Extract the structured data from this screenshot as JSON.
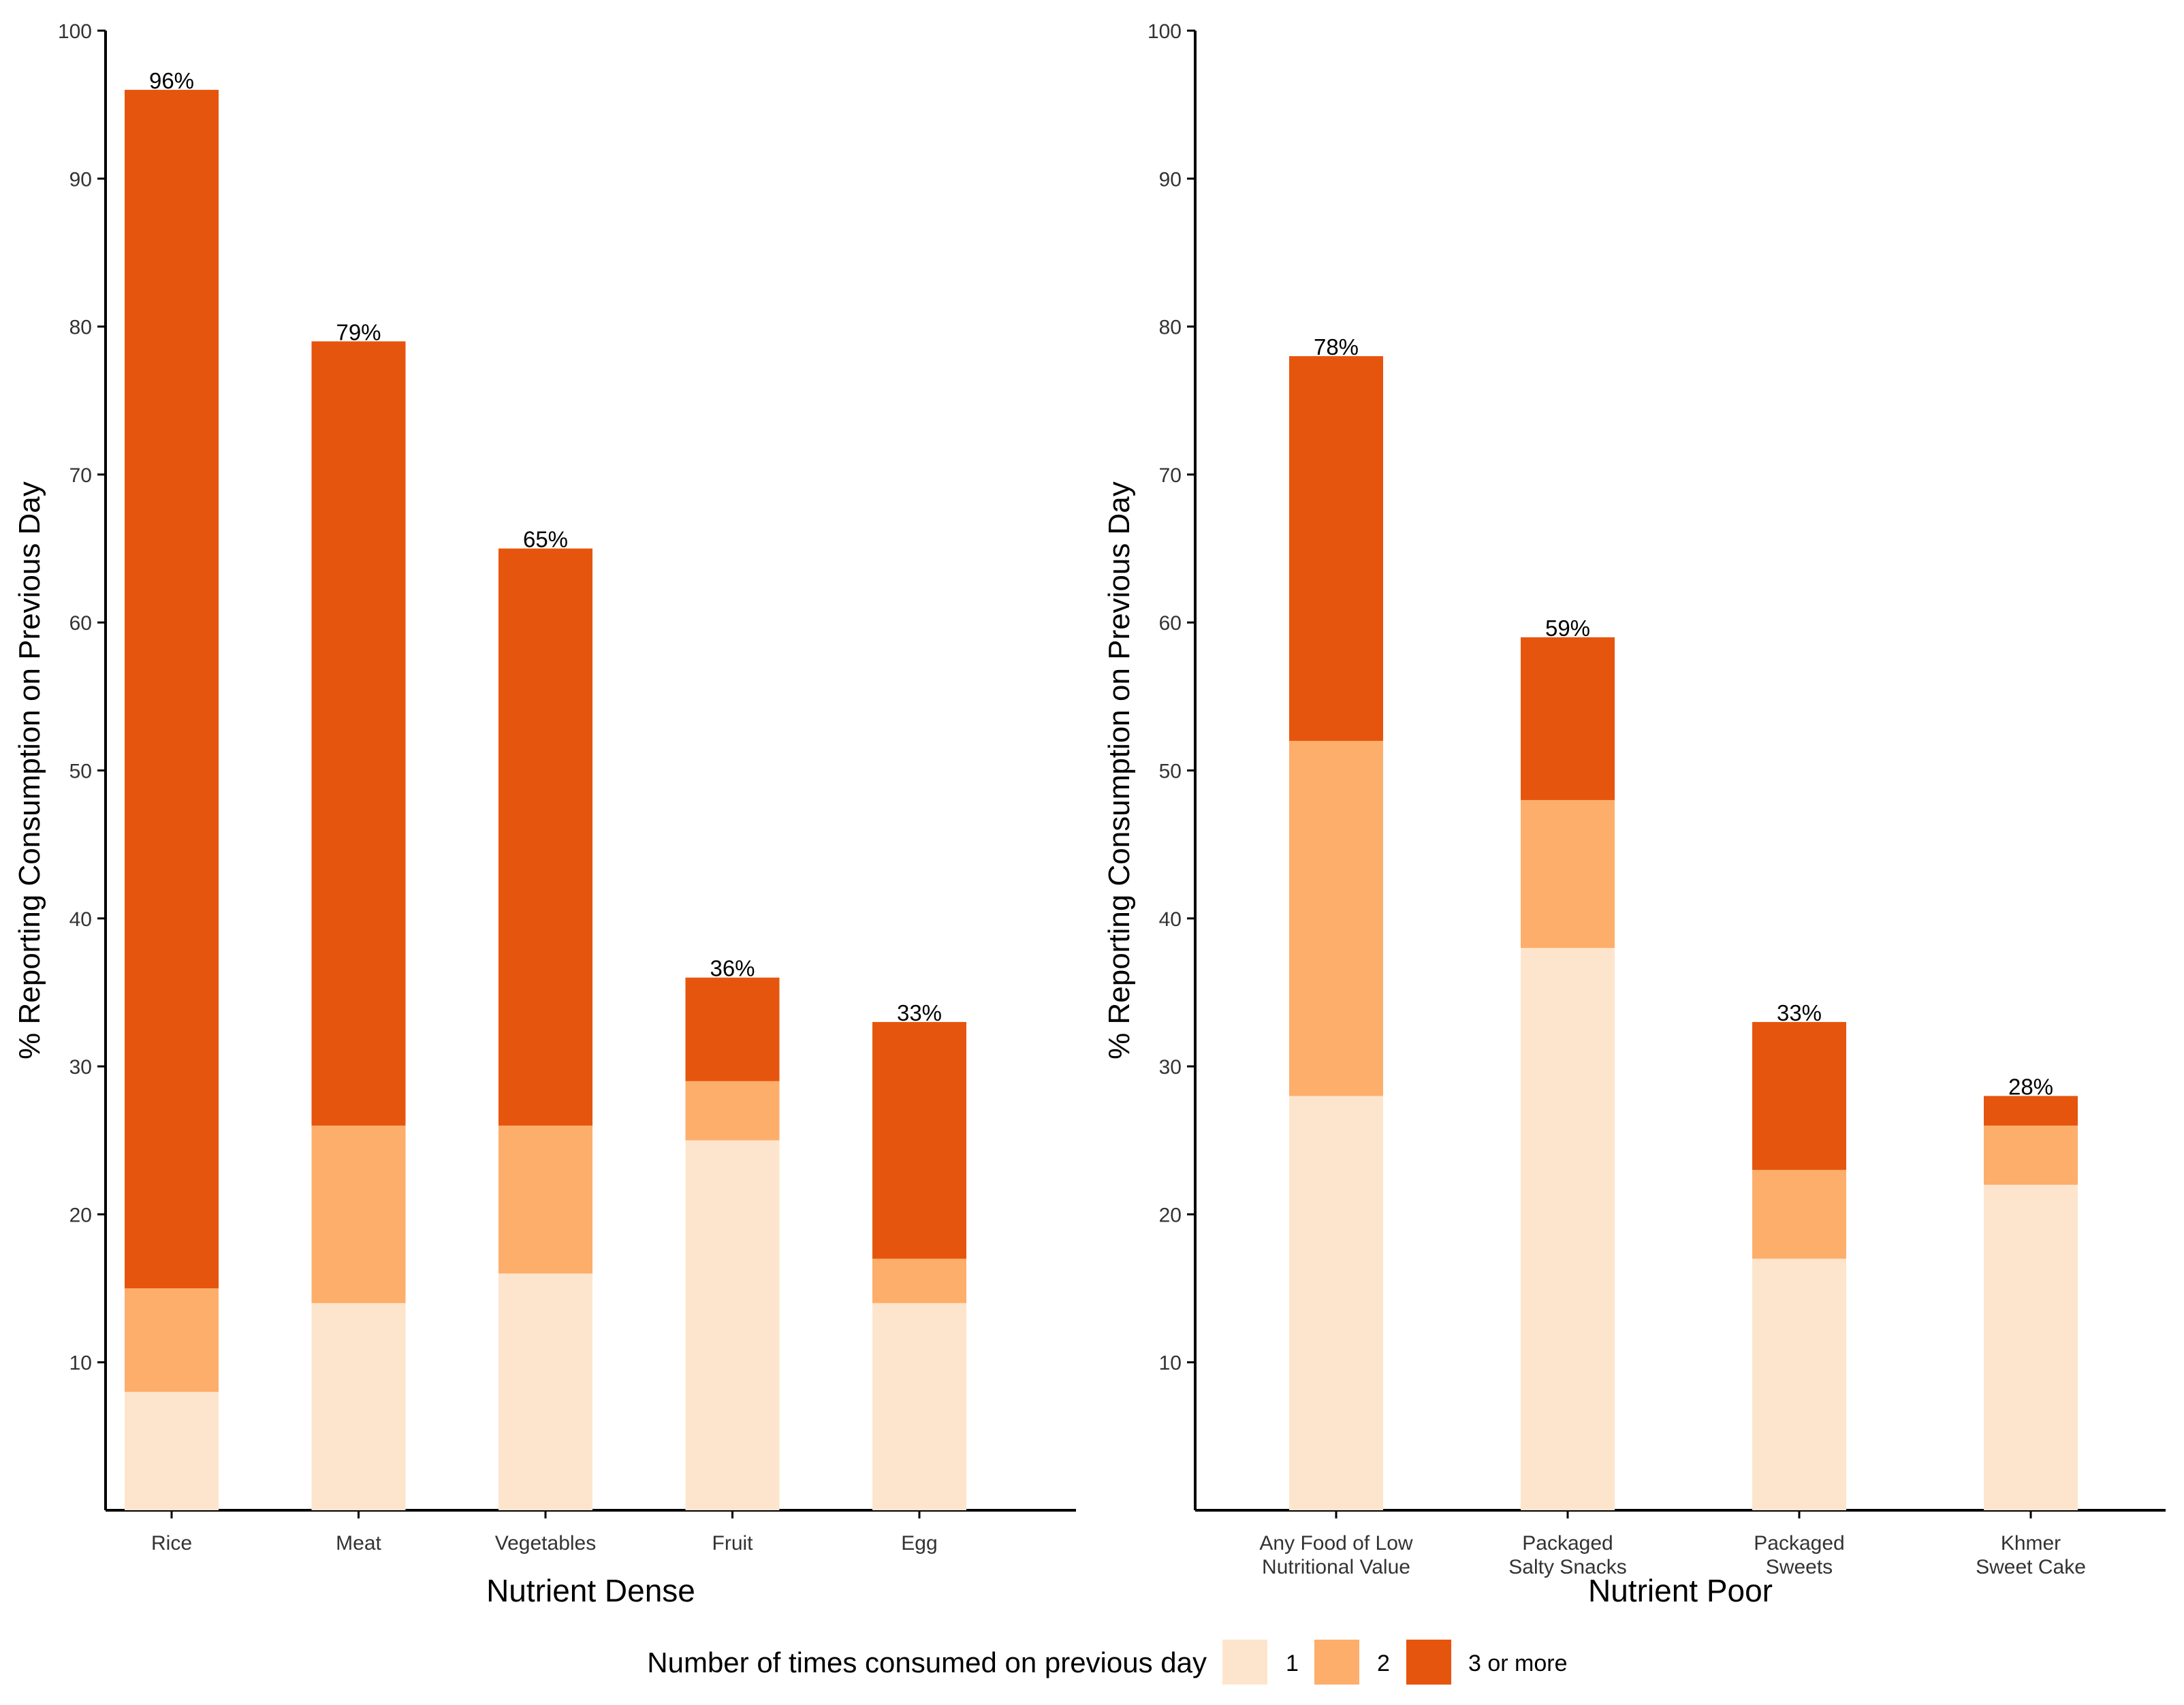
{
  "chart_data": [
    {
      "type": "bar",
      "stacked": true,
      "xlabel": "Nutrient Dense",
      "ylabel": "% Reporting Consumption on Previous Day",
      "ylim": [
        0,
        100
      ],
      "yticks": [
        10,
        20,
        30,
        40,
        50,
        60,
        70,
        80,
        90,
        100
      ],
      "categories": [
        "Rice",
        "Meat",
        "Vegetables",
        "Fruit",
        "Egg"
      ],
      "series": [
        {
          "name": "1",
          "values": [
            8,
            14,
            16,
            25,
            14
          ]
        },
        {
          "name": "2",
          "values": [
            7,
            12,
            10,
            4,
            3
          ]
        },
        {
          "name": "3 or more",
          "values": [
            81,
            53,
            39,
            7,
            16
          ]
        }
      ],
      "totals": [
        96,
        79,
        65,
        36,
        33
      ],
      "total_labels": [
        "96%",
        "79%",
        "65%",
        "36%",
        "33%"
      ]
    },
    {
      "type": "bar",
      "stacked": true,
      "xlabel": "Nutrient Poor",
      "ylabel": "% Reporting Consumption on Previous Day",
      "ylim": [
        0,
        100
      ],
      "yticks": [
        10,
        20,
        30,
        40,
        50,
        60,
        70,
        80,
        90,
        100
      ],
      "categories": [
        "Any Food of Low Nutritional Value",
        "Packaged Salty Snacks",
        "Packaged Sweets",
        "Khmer Sweet Cake"
      ],
      "category_lines": [
        [
          "Any Food of Low",
          "Nutritional Value"
        ],
        [
          "Packaged",
          "Salty Snacks"
        ],
        [
          "Packaged",
          "Sweets"
        ],
        [
          "Khmer",
          "Sweet Cake"
        ]
      ],
      "series": [
        {
          "name": "1",
          "values": [
            28,
            38,
            17,
            22
          ]
        },
        {
          "name": "2",
          "values": [
            24,
            10,
            6,
            4
          ]
        },
        {
          "name": "3 or more",
          "values": [
            26,
            11,
            10,
            2
          ]
        }
      ],
      "totals": [
        78,
        59,
        33,
        28
      ],
      "total_labels": [
        "78%",
        "",
        "33%",
        "28%"
      ],
      "total_labels_extra": [
        "59%"
      ]
    }
  ],
  "legend": {
    "title": "Number of times consumed on previous day",
    "placement": "bottom",
    "items": [
      "1",
      "2",
      "3 or more"
    ]
  },
  "colors": {
    "series": [
      "#fde5cd",
      "#fdae6b",
      "#e6550d"
    ],
    "axis": "#000000",
    "text": "#000000",
    "tick_text": "#333333"
  }
}
